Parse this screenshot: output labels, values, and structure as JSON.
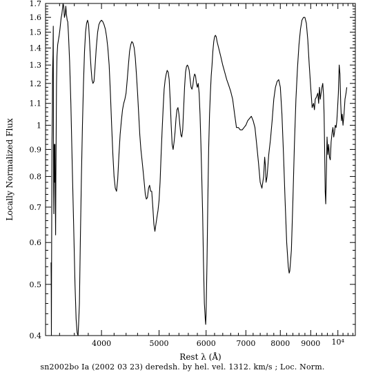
{
  "caption": "sn2002bo Ia (2002 03 23) deredsh. by hel. vel.  1312. km/s ;  Loc. Norm.",
  "chart_data": {
    "type": "line",
    "title": "",
    "xlabel": "Rest λ (Å)",
    "ylabel": "Locally Normalized Flux",
    "xscale": "log",
    "yscale": "log",
    "xlim": [
      3220,
      10700
    ],
    "ylim": [
      0.4,
      1.7
    ],
    "x_ticks": [
      {
        "value": 4000,
        "label": "4000"
      },
      {
        "value": 5000,
        "label": "5000"
      },
      {
        "value": 6000,
        "label": "6000"
      },
      {
        "value": 7000,
        "label": "7000"
      },
      {
        "value": 8000,
        "label": "8000"
      },
      {
        "value": 9000,
        "label": "9000"
      },
      {
        "value": 10000,
        "label": "10⁴"
      }
    ],
    "x_minor_step": 200,
    "y_ticks": [
      {
        "value": 0.4,
        "label": "0.4"
      },
      {
        "value": 0.5,
        "label": "0.5"
      },
      {
        "value": 0.6,
        "label": "0.6"
      },
      {
        "value": 0.7,
        "label": "0.7"
      },
      {
        "value": 0.8,
        "label": "0.8"
      },
      {
        "value": 0.9,
        "label": "0.9"
      },
      {
        "value": 1.0,
        "label": "1"
      },
      {
        "value": 1.1,
        "label": "1.1"
      },
      {
        "value": 1.2,
        "label": "1.2"
      },
      {
        "value": 1.3,
        "label": "1.3"
      },
      {
        "value": 1.4,
        "label": "1.4"
      },
      {
        "value": 1.5,
        "label": "1.5"
      },
      {
        "value": 1.6,
        "label": "1.6"
      },
      {
        "value": 1.7,
        "label": "1.7"
      }
    ],
    "y_minor_step": 0.02,
    "grid": false,
    "series": [
      {
        "color": "#000000",
        "points": [
          [
            3290,
            0.55
          ],
          [
            3292,
            0.49
          ],
          [
            3294,
            0.4
          ],
          [
            3296,
            0.52
          ],
          [
            3298,
            0.62
          ],
          [
            3300,
            0.8
          ],
          [
            3302,
            0.92
          ],
          [
            3304,
            0.99
          ],
          [
            3306,
            1.07
          ],
          [
            3308,
            1.2
          ],
          [
            3310,
            1.28
          ],
          [
            3314,
            1.36
          ],
          [
            3318,
            1.54
          ],
          [
            3320,
            1.05
          ],
          [
            3322,
            0.75
          ],
          [
            3325,
            0.68
          ],
          [
            3328,
            0.85
          ],
          [
            3331,
            0.92
          ],
          [
            3334,
            0.82
          ],
          [
            3337,
            0.78
          ],
          [
            3340,
            0.92
          ],
          [
            3344,
            0.74
          ],
          [
            3348,
            0.62
          ],
          [
            3352,
            0.8
          ],
          [
            3356,
            1.0
          ],
          [
            3360,
            1.2
          ],
          [
            3366,
            1.35
          ],
          [
            3375,
            1.42
          ],
          [
            3385,
            1.45
          ],
          [
            3395,
            1.48
          ],
          [
            3405,
            1.52
          ],
          [
            3415,
            1.57
          ],
          [
            3422,
            1.6
          ],
          [
            3430,
            1.62
          ],
          [
            3438,
            1.66
          ],
          [
            3446,
            1.7
          ],
          [
            3455,
            1.68
          ],
          [
            3465,
            1.6
          ],
          [
            3474,
            1.62
          ],
          [
            3483,
            1.68
          ],
          [
            3492,
            1.62
          ],
          [
            3502,
            1.58
          ],
          [
            3510,
            1.57
          ],
          [
            3520,
            1.48
          ],
          [
            3535,
            1.32
          ],
          [
            3552,
            1.1
          ],
          [
            3570,
            0.85
          ],
          [
            3590,
            0.65
          ],
          [
            3610,
            0.5
          ],
          [
            3625,
            0.43
          ],
          [
            3640,
            0.405
          ],
          [
            3652,
            0.4
          ],
          [
            3660,
            0.42
          ],
          [
            3672,
            0.46
          ],
          [
            3685,
            0.6
          ],
          [
            3700,
            0.8
          ],
          [
            3715,
            1.0
          ],
          [
            3730,
            1.2
          ],
          [
            3745,
            1.38
          ],
          [
            3760,
            1.5
          ],
          [
            3775,
            1.56
          ],
          [
            3790,
            1.58
          ],
          [
            3805,
            1.55
          ],
          [
            3818,
            1.45
          ],
          [
            3830,
            1.35
          ],
          [
            3842,
            1.28
          ],
          [
            3855,
            1.22
          ],
          [
            3870,
            1.2
          ],
          [
            3885,
            1.21
          ],
          [
            3900,
            1.28
          ],
          [
            3920,
            1.4
          ],
          [
            3940,
            1.5
          ],
          [
            3960,
            1.55
          ],
          [
            3980,
            1.57
          ],
          [
            4000,
            1.58
          ],
          [
            4020,
            1.57
          ],
          [
            4040,
            1.55
          ],
          [
            4060,
            1.52
          ],
          [
            4080,
            1.47
          ],
          [
            4100,
            1.4
          ],
          [
            4120,
            1.3
          ],
          [
            4140,
            1.15
          ],
          [
            4160,
            1.0
          ],
          [
            4180,
            0.88
          ],
          [
            4200,
            0.8
          ],
          [
            4220,
            0.76
          ],
          [
            4240,
            0.75
          ],
          [
            4260,
            0.79
          ],
          [
            4280,
            0.88
          ],
          [
            4300,
            0.96
          ],
          [
            4320,
            1.02
          ],
          [
            4340,
            1.07
          ],
          [
            4360,
            1.1
          ],
          [
            4380,
            1.12
          ],
          [
            4400,
            1.15
          ],
          [
            4420,
            1.22
          ],
          [
            4440,
            1.3
          ],
          [
            4460,
            1.38
          ],
          [
            4480,
            1.42
          ],
          [
            4500,
            1.44
          ],
          [
            4520,
            1.43
          ],
          [
            4540,
            1.4
          ],
          [
            4560,
            1.34
          ],
          [
            4580,
            1.25
          ],
          [
            4600,
            1.15
          ],
          [
            4620,
            1.05
          ],
          [
            4640,
            0.96
          ],
          [
            4660,
            0.9
          ],
          [
            4680,
            0.86
          ],
          [
            4700,
            0.82
          ],
          [
            4720,
            0.78
          ],
          [
            4740,
            0.74
          ],
          [
            4760,
            0.725
          ],
          [
            4780,
            0.73
          ],
          [
            4800,
            0.76
          ],
          [
            4820,
            0.77
          ],
          [
            4840,
            0.75
          ],
          [
            4860,
            0.75
          ],
          [
            4880,
            0.7
          ],
          [
            4900,
            0.65
          ],
          [
            4920,
            0.63
          ],
          [
            4940,
            0.65
          ],
          [
            4960,
            0.67
          ],
          [
            4980,
            0.69
          ],
          [
            5000,
            0.72
          ],
          [
            5020,
            0.78
          ],
          [
            5040,
            0.88
          ],
          [
            5060,
            0.98
          ],
          [
            5080,
            1.08
          ],
          [
            5100,
            1.17
          ],
          [
            5120,
            1.22
          ],
          [
            5140,
            1.25
          ],
          [
            5160,
            1.27
          ],
          [
            5180,
            1.26
          ],
          [
            5200,
            1.22
          ],
          [
            5220,
            1.12
          ],
          [
            5240,
            1.0
          ],
          [
            5260,
            0.92
          ],
          [
            5280,
            0.9
          ],
          [
            5300,
            0.93
          ],
          [
            5320,
            0.97
          ],
          [
            5340,
            1.03
          ],
          [
            5360,
            1.07
          ],
          [
            5380,
            1.08
          ],
          [
            5400,
            1.05
          ],
          [
            5420,
            1.0
          ],
          [
            5440,
            0.96
          ],
          [
            5460,
            0.95
          ],
          [
            5480,
            0.98
          ],
          [
            5500,
            1.08
          ],
          [
            5520,
            1.18
          ],
          [
            5540,
            1.26
          ],
          [
            5560,
            1.29
          ],
          [
            5580,
            1.3
          ],
          [
            5600,
            1.29
          ],
          [
            5620,
            1.27
          ],
          [
            5640,
            1.22
          ],
          [
            5660,
            1.18
          ],
          [
            5680,
            1.17
          ],
          [
            5700,
            1.19
          ],
          [
            5720,
            1.23
          ],
          [
            5740,
            1.25
          ],
          [
            5760,
            1.24
          ],
          [
            5780,
            1.2
          ],
          [
            5800,
            1.18
          ],
          [
            5820,
            1.2
          ],
          [
            5840,
            1.15
          ],
          [
            5860,
            1.05
          ],
          [
            5880,
            0.92
          ],
          [
            5900,
            0.8
          ],
          [
            5920,
            0.68
          ],
          [
            5940,
            0.55
          ],
          [
            5960,
            0.46
          ],
          [
            5980,
            0.43
          ],
          [
            5990,
            0.42
          ],
          [
            6000,
            0.44
          ],
          [
            6020,
            0.55
          ],
          [
            6040,
            0.72
          ],
          [
            6060,
            0.9
          ],
          [
            6080,
            1.05
          ],
          [
            6100,
            1.15
          ],
          [
            6120,
            1.24
          ],
          [
            6140,
            1.3
          ],
          [
            6160,
            1.38
          ],
          [
            6180,
            1.44
          ],
          [
            6200,
            1.47
          ],
          [
            6220,
            1.48
          ],
          [
            6240,
            1.47
          ],
          [
            6260,
            1.44
          ],
          [
            6300,
            1.4
          ],
          [
            6350,
            1.35
          ],
          [
            6400,
            1.3
          ],
          [
            6450,
            1.26
          ],
          [
            6500,
            1.22
          ],
          [
            6550,
            1.19
          ],
          [
            6600,
            1.16
          ],
          [
            6650,
            1.12
          ],
          [
            6700,
            1.05
          ],
          [
            6750,
            0.99
          ],
          [
            6800,
            0.99
          ],
          [
            6850,
            0.98
          ],
          [
            6900,
            0.98
          ],
          [
            6950,
            0.99
          ],
          [
            7000,
            1.0
          ],
          [
            7050,
            1.02
          ],
          [
            7100,
            1.03
          ],
          [
            7150,
            1.04
          ],
          [
            7200,
            1.02
          ],
          [
            7250,
            0.99
          ],
          [
            7300,
            0.92
          ],
          [
            7350,
            0.85
          ],
          [
            7400,
            0.78
          ],
          [
            7450,
            0.76
          ],
          [
            7500,
            0.8
          ],
          [
            7530,
            0.87
          ],
          [
            7550,
            0.84
          ],
          [
            7570,
            0.78
          ],
          [
            7600,
            0.8
          ],
          [
            7650,
            0.88
          ],
          [
            7700,
            0.94
          ],
          [
            7750,
            1.02
          ],
          [
            7800,
            1.12
          ],
          [
            7850,
            1.18
          ],
          [
            7900,
            1.21
          ],
          [
            7950,
            1.22
          ],
          [
            8000,
            1.18
          ],
          [
            8050,
            1.05
          ],
          [
            8100,
            0.88
          ],
          [
            8150,
            0.72
          ],
          [
            8200,
            0.6
          ],
          [
            8250,
            0.54
          ],
          [
            8280,
            0.525
          ],
          [
            8300,
            0.53
          ],
          [
            8350,
            0.58
          ],
          [
            8400,
            0.72
          ],
          [
            8450,
            0.92
          ],
          [
            8500,
            1.12
          ],
          [
            8550,
            1.28
          ],
          [
            8600,
            1.42
          ],
          [
            8650,
            1.52
          ],
          [
            8700,
            1.58
          ],
          [
            8750,
            1.6
          ],
          [
            8800,
            1.6
          ],
          [
            8850,
            1.56
          ],
          [
            8900,
            1.45
          ],
          [
            8950,
            1.3
          ],
          [
            9000,
            1.18
          ],
          [
            9050,
            1.08
          ],
          [
            9100,
            1.1
          ],
          [
            9130,
            1.07
          ],
          [
            9160,
            1.12
          ],
          [
            9200,
            1.13
          ],
          [
            9250,
            1.15
          ],
          [
            9280,
            1.1
          ],
          [
            9310,
            1.18
          ],
          [
            9340,
            1.12
          ],
          [
            9370,
            1.15
          ],
          [
            9400,
            1.18
          ],
          [
            9430,
            1.2
          ],
          [
            9460,
            1.14
          ],
          [
            9480,
            1.05
          ],
          [
            9500,
            0.9
          ],
          [
            9520,
            0.75
          ],
          [
            9540,
            0.71
          ],
          [
            9560,
            0.8
          ],
          [
            9590,
            0.95
          ],
          [
            9620,
            0.88
          ],
          [
            9650,
            0.92
          ],
          [
            9680,
            0.87
          ],
          [
            9710,
            0.86
          ],
          [
            9740,
            0.93
          ],
          [
            9780,
            0.97
          ],
          [
            9810,
            0.99
          ],
          [
            9840,
            0.95
          ],
          [
            9870,
            0.97
          ],
          [
            9900,
            1.0
          ],
          [
            9930,
            0.99
          ],
          [
            9960,
            1.02
          ],
          [
            9990,
            1.08
          ],
          [
            10020,
            1.15
          ],
          [
            10050,
            1.3
          ],
          [
            10080,
            1.25
          ],
          [
            10110,
            1.1
          ],
          [
            10140,
            1.02
          ],
          [
            10170,
            1.05
          ],
          [
            10200,
            1.0
          ],
          [
            10240,
            1.05
          ],
          [
            10280,
            1.12
          ],
          [
            10320,
            1.15
          ],
          [
            10350,
            1.18
          ]
        ]
      }
    ]
  }
}
